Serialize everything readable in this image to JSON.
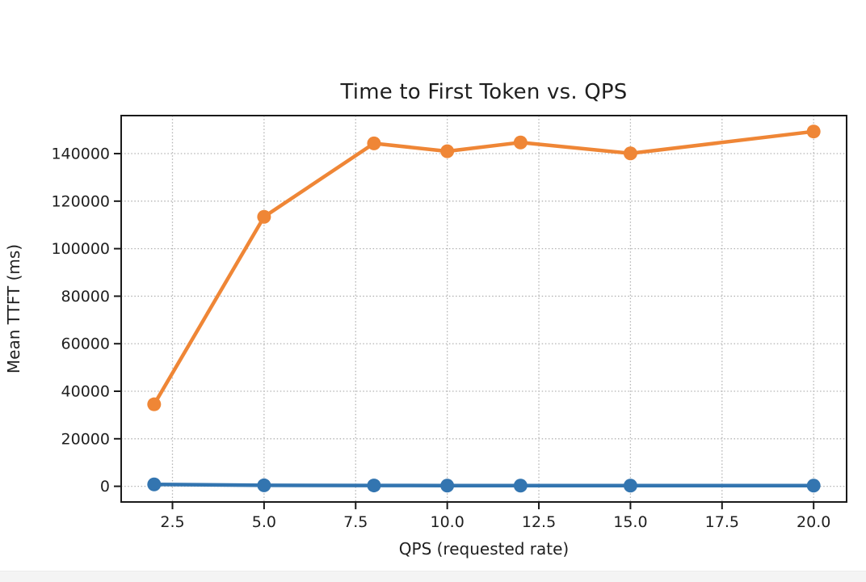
{
  "chart_data": {
    "type": "line",
    "title": "Time to First Token vs. QPS",
    "xlabel": "QPS (requested rate)",
    "ylabel": "Mean TTFT (ms)",
    "x": [
      2,
      5,
      8,
      10,
      12,
      15,
      20
    ],
    "series": [
      {
        "name": "blue",
        "color": "#3375b0",
        "values": [
          800,
          400,
          350,
          300,
          300,
          300,
          300
        ]
      },
      {
        "name": "orange",
        "color": "#ef8636",
        "values": [
          34500,
          113400,
          144300,
          141000,
          144700,
          140100,
          149300
        ]
      }
    ],
    "x_ticks": [
      2.5,
      5,
      7.5,
      10,
      12.5,
      15,
      17.5,
      20
    ],
    "x_tick_labels": [
      "2.5",
      "5.0",
      "7.5",
      "10.0",
      "12.5",
      "15.0",
      "17.5",
      "20.0"
    ],
    "y_ticks": [
      0,
      20000,
      40000,
      60000,
      80000,
      100000,
      120000,
      140000
    ],
    "y_tick_labels": [
      "0",
      "20000",
      "40000",
      "60000",
      "80000",
      "100000",
      "120000",
      "140000"
    ],
    "xlim": [
      1.1,
      20.9
    ],
    "ylim": [
      -6600,
      156000
    ],
    "grid": true,
    "grid_style": "dotted",
    "grid_color": "#b3b3b3",
    "legend": "none",
    "text_color": "#1f1f1f",
    "spine_color": "#1a1a1a",
    "marker": "circle"
  },
  "footer": {
    "bar_color": "#f4f4f4"
  }
}
